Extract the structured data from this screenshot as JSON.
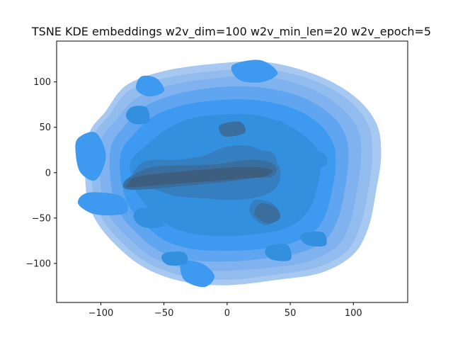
{
  "chart_data": {
    "type": "kde_contour",
    "title": "TSNE KDE embeddings w2v_dim=100 w2v_min_len=20 w2v_epoch=5",
    "xlabel": "",
    "ylabel": "",
    "xlim": [
      -135,
      143
    ],
    "ylim": [
      -143,
      145
    ],
    "xticks": [
      -100,
      -50,
      0,
      50,
      100
    ],
    "yticks": [
      -100,
      -50,
      0,
      50,
      100
    ],
    "xtick_labels": [
      "−100",
      "−50",
      "0",
      "50",
      "100"
    ],
    "ytick_labels": [
      "−100",
      "−50",
      "0",
      "50",
      "100"
    ],
    "grid": false,
    "fill_colors": [
      "#a7c8f0",
      "#93bcee",
      "#7fb2ee",
      "#5fa5f0",
      "#3d9af0",
      "#3390df",
      "#357fc0",
      "#3a6e9f",
      "#3e5e80",
      "#3d5470"
    ],
    "contours": [
      {
        "level": 1,
        "points": [
          [
            -110,
            40
          ],
          [
            -96,
            68
          ],
          [
            -80,
            96
          ],
          [
            -50,
            112
          ],
          [
            -10,
            120
          ],
          [
            30,
            122
          ],
          [
            70,
            108
          ],
          [
            100,
            85
          ],
          [
            118,
            55
          ],
          [
            122,
            20
          ],
          [
            118,
            -20
          ],
          [
            112,
            -60
          ],
          [
            100,
            -90
          ],
          [
            75,
            -110
          ],
          [
            40,
            -118
          ],
          [
            0,
            -124
          ],
          [
            -35,
            -120
          ],
          [
            -65,
            -105
          ],
          [
            -88,
            -80
          ],
          [
            -105,
            -50
          ],
          [
            -112,
            -15
          ]
        ]
      },
      {
        "level": 2,
        "points": [
          [
            -106,
            38
          ],
          [
            -93,
            64
          ],
          [
            -78,
            90
          ],
          [
            -50,
            104
          ],
          [
            -10,
            112
          ],
          [
            30,
            114
          ],
          [
            68,
            102
          ],
          [
            96,
            80
          ],
          [
            112,
            52
          ],
          [
            115,
            20
          ],
          [
            112,
            -18
          ],
          [
            106,
            -56
          ],
          [
            95,
            -86
          ],
          [
            72,
            -104
          ],
          [
            40,
            -112
          ],
          [
            0,
            -118
          ],
          [
            -34,
            -114
          ],
          [
            -62,
            -100
          ],
          [
            -84,
            -76
          ],
          [
            -100,
            -48
          ],
          [
            -107,
            -14
          ]
        ]
      },
      {
        "level": 3,
        "points": [
          [
            -100,
            34
          ],
          [
            -88,
            58
          ],
          [
            -72,
            82
          ],
          [
            -46,
            96
          ],
          [
            -10,
            104
          ],
          [
            28,
            106
          ],
          [
            64,
            94
          ],
          [
            90,
            72
          ],
          [
            104,
            46
          ],
          [
            106,
            16
          ],
          [
            103,
            -18
          ],
          [
            98,
            -52
          ],
          [
            88,
            -80
          ],
          [
            66,
            -97
          ],
          [
            38,
            -104
          ],
          [
            0,
            -108
          ],
          [
            -32,
            -106
          ],
          [
            -58,
            -94
          ],
          [
            -78,
            -72
          ],
          [
            -94,
            -46
          ],
          [
            -100,
            -14
          ]
        ]
      },
      {
        "level": 4,
        "points": [
          [
            -92,
            28
          ],
          [
            -82,
            50
          ],
          [
            -66,
            72
          ],
          [
            -42,
            86
          ],
          [
            -8,
            94
          ],
          [
            26,
            94
          ],
          [
            58,
            84
          ],
          [
            82,
            64
          ],
          [
            94,
            40
          ],
          [
            96,
            12
          ],
          [
            93,
            -20
          ],
          [
            88,
            -50
          ],
          [
            78,
            -74
          ],
          [
            58,
            -88
          ],
          [
            32,
            -94
          ],
          [
            0,
            -98
          ],
          [
            -30,
            -96
          ],
          [
            -54,
            -86
          ],
          [
            -72,
            -66
          ],
          [
            -86,
            -42
          ],
          [
            -92,
            -12
          ]
        ]
      },
      {
        "level": 5,
        "points": [
          [
            -84,
            22
          ],
          [
            -74,
            42
          ],
          [
            -58,
            62
          ],
          [
            -36,
            74
          ],
          [
            -6,
            80
          ],
          [
            22,
            80
          ],
          [
            50,
            72
          ],
          [
            72,
            55
          ],
          [
            84,
            32
          ],
          [
            86,
            8
          ],
          [
            83,
            -20
          ],
          [
            78,
            -46
          ],
          [
            68,
            -66
          ],
          [
            50,
            -78
          ],
          [
            28,
            -84
          ],
          [
            0,
            -86
          ],
          [
            -28,
            -84
          ],
          [
            -50,
            -74
          ],
          [
            -66,
            -56
          ],
          [
            -78,
            -36
          ],
          [
            -84,
            -8
          ]
        ]
      },
      {
        "level": 6,
        "points": [
          [
            -76,
            14
          ],
          [
            -64,
            30
          ],
          [
            -48,
            48
          ],
          [
            -28,
            60
          ],
          [
            -4,
            64
          ],
          [
            20,
            64
          ],
          [
            42,
            56
          ],
          [
            60,
            42
          ],
          [
            72,
            24
          ],
          [
            74,
            4
          ],
          [
            71,
            -18
          ],
          [
            66,
            -38
          ],
          [
            56,
            -54
          ],
          [
            40,
            -64
          ],
          [
            20,
            -68
          ],
          [
            0,
            -70
          ],
          [
            -24,
            -68
          ],
          [
            -44,
            -60
          ],
          [
            -58,
            -44
          ],
          [
            -70,
            -26
          ],
          [
            -76,
            -4
          ]
        ]
      },
      {
        "level": 7,
        "points": [
          [
            -74,
            2
          ],
          [
            -60,
            10
          ],
          [
            -40,
            12
          ],
          [
            -20,
            18
          ],
          [
            -2,
            28
          ],
          [
            14,
            30
          ],
          [
            28,
            24
          ],
          [
            40,
            10
          ],
          [
            42,
            -6
          ],
          [
            36,
            -20
          ],
          [
            20,
            -28
          ],
          [
            0,
            -30
          ],
          [
            -20,
            -28
          ],
          [
            -40,
            -26
          ],
          [
            -58,
            -18
          ],
          [
            -70,
            -10
          ]
        ]
      },
      {
        "level": 8,
        "points": [
          [
            -80,
            -8
          ],
          [
            -80,
            -18
          ],
          [
            -60,
            -18
          ],
          [
            -30,
            -14
          ],
          [
            0,
            -10
          ],
          [
            20,
            -6
          ],
          [
            36,
            -4
          ],
          [
            38,
            8
          ],
          [
            20,
            14
          ],
          [
            0,
            10
          ],
          [
            -30,
            8
          ],
          [
            -60,
            6
          ]
        ]
      },
      {
        "level": 9,
        "points": [
          [
            -78,
            -12
          ],
          [
            -76,
            -16
          ],
          [
            -40,
            -12
          ],
          [
            0,
            -8
          ],
          [
            30,
            -4
          ],
          [
            34,
            4
          ],
          [
            10,
            6
          ],
          [
            -30,
            2
          ],
          [
            -70,
            -4
          ]
        ]
      }
    ],
    "blobs": [
      {
        "level": 5,
        "points": [
          [
            -118,
            38
          ],
          [
            -104,
            44
          ],
          [
            -96,
            18
          ],
          [
            -104,
            -8
          ],
          [
            -116,
            0
          ],
          [
            -120,
            22
          ]
        ]
      },
      {
        "level": 5,
        "points": [
          [
            -110,
            -22
          ],
          [
            -84,
            -26
          ],
          [
            -80,
            -44
          ],
          [
            -104,
            -46
          ],
          [
            -118,
            -34
          ]
        ]
      },
      {
        "level": 5,
        "points": [
          [
            -68,
            106
          ],
          [
            -56,
            104
          ],
          [
            -50,
            90
          ],
          [
            -62,
            84
          ],
          [
            -72,
            92
          ]
        ]
      },
      {
        "level": 5,
        "points": [
          [
            4,
            118
          ],
          [
            26,
            124
          ],
          [
            40,
            110
          ],
          [
            28,
            100
          ],
          [
            10,
            102
          ]
        ]
      },
      {
        "level": 5,
        "points": [
          [
            -36,
            -98
          ],
          [
            -20,
            -100
          ],
          [
            -10,
            -114
          ],
          [
            -18,
            -126
          ],
          [
            -34,
            -118
          ]
        ]
      },
      {
        "level": 6,
        "points": [
          [
            -2,
            60
          ],
          [
            16,
            58
          ],
          [
            18,
            46
          ],
          [
            0,
            42
          ],
          [
            -6,
            50
          ]
        ]
      },
      {
        "level": 6,
        "points": [
          [
            36,
            -22
          ],
          [
            48,
            -24
          ],
          [
            52,
            -44
          ],
          [
            38,
            -52
          ],
          [
            28,
            -42
          ]
        ]
      },
      {
        "level": 6,
        "points": [
          [
            30,
            58
          ],
          [
            44,
            56
          ],
          [
            46,
            44
          ],
          [
            32,
            42
          ],
          [
            28,
            50
          ]
        ]
      },
      {
        "level": 6,
        "points": [
          [
            58,
            24
          ],
          [
            76,
            22
          ],
          [
            78,
            8
          ],
          [
            60,
            6
          ],
          [
            54,
            14
          ]
        ]
      },
      {
        "level": 6,
        "points": [
          [
            -76,
            72
          ],
          [
            -64,
            72
          ],
          [
            -62,
            56
          ],
          [
            -74,
            54
          ],
          [
            -80,
            62
          ]
        ]
      },
      {
        "level": 6,
        "points": [
          [
            -70,
            -40
          ],
          [
            -54,
            -40
          ],
          [
            -50,
            -58
          ],
          [
            -66,
            -60
          ],
          [
            -74,
            -50
          ]
        ]
      },
      {
        "level": 6,
        "points": [
          [
            34,
            -80
          ],
          [
            48,
            -80
          ],
          [
            50,
            -96
          ],
          [
            36,
            -96
          ],
          [
            30,
            -88
          ]
        ]
      },
      {
        "level": 6,
        "points": [
          [
            -48,
            -88
          ],
          [
            -34,
            -88
          ],
          [
            -32,
            -100
          ],
          [
            -46,
            -102
          ],
          [
            -52,
            -94
          ]
        ]
      },
      {
        "level": 6,
        "points": [
          [
            62,
            -66
          ],
          [
            76,
            -66
          ],
          [
            78,
            -80
          ],
          [
            64,
            -80
          ],
          [
            58,
            -72
          ]
        ]
      },
      {
        "level": 7,
        "points": [
          [
            -70,
            8
          ],
          [
            -60,
            14
          ],
          [
            -40,
            14
          ],
          [
            -20,
            18
          ],
          [
            0,
            22
          ],
          [
            20,
            24
          ],
          [
            36,
            22
          ],
          [
            38,
            8
          ],
          [
            20,
            4
          ],
          [
            0,
            4
          ],
          [
            -20,
            0
          ],
          [
            -40,
            -4
          ],
          [
            -60,
            -4
          ],
          [
            -72,
            -2
          ]
        ]
      },
      {
        "level": 7,
        "points": [
          [
            22,
            -30
          ],
          [
            36,
            -34
          ],
          [
            42,
            -48
          ],
          [
            30,
            -58
          ],
          [
            18,
            -44
          ]
        ]
      },
      {
        "level": 8,
        "points": [
          [
            -6,
            52
          ],
          [
            10,
            56
          ],
          [
            14,
            44
          ],
          [
            -2,
            40
          ]
        ]
      },
      {
        "level": 8,
        "points": [
          [
            -14,
            6
          ],
          [
            4,
            12
          ],
          [
            24,
            14
          ],
          [
            36,
            10
          ],
          [
            38,
            2
          ],
          [
            20,
            -2
          ],
          [
            0,
            -2
          ],
          [
            -12,
            0
          ]
        ]
      },
      {
        "level": 8,
        "points": [
          [
            26,
            -34
          ],
          [
            38,
            -38
          ],
          [
            42,
            -50
          ],
          [
            32,
            -56
          ],
          [
            22,
            -46
          ]
        ]
      }
    ]
  }
}
